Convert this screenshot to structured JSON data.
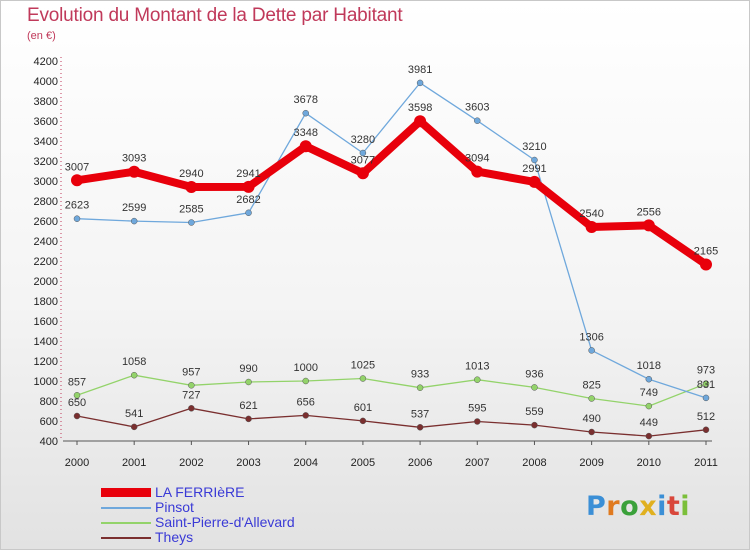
{
  "header": {
    "title": "Evolution du Montant de la Dette par Habitant",
    "unit": "(en €)"
  },
  "chart_data": {
    "type": "line",
    "title": "Evolution du Montant de la Dette par Habitant",
    "subtitle": "(en €)",
    "xlabel": "",
    "ylabel": "",
    "x": [
      "2000",
      "2001",
      "2002",
      "2003",
      "2004",
      "2005",
      "2006",
      "2007",
      "2008",
      "2009",
      "2010",
      "2011"
    ],
    "ylim": [
      400,
      4200
    ],
    "yticks": [
      400,
      600,
      800,
      1000,
      1200,
      1400,
      1600,
      1800,
      2000,
      2200,
      2400,
      2600,
      2800,
      3000,
      3200,
      3400,
      3600,
      3800,
      4000,
      4200
    ],
    "grid": false,
    "legend_position": "bottom-left",
    "series": [
      {
        "name": "LA FERRIèRE",
        "color": "#e8000b",
        "values": [
          3007,
          3093,
          2940,
          2941,
          3348,
          3077,
          3598,
          3094,
          2991,
          2540,
          2556,
          2165
        ]
      },
      {
        "name": "Pinsot",
        "color": "#6fa8dc",
        "values": [
          2623,
          2599,
          2585,
          2682,
          3678,
          3280,
          3981,
          3603,
          3210,
          1306,
          1018,
          831
        ]
      },
      {
        "name": "Saint-Pierre-d'Allevard",
        "color": "#93d36a",
        "values": [
          857,
          1058,
          957,
          990,
          1000,
          1025,
          933,
          1013,
          936,
          825,
          749,
          973
        ]
      },
      {
        "name": "Theys",
        "color": "#7a2f2f",
        "values": [
          650,
          541,
          727,
          621,
          656,
          601,
          537,
          595,
          559,
          490,
          449,
          512
        ]
      }
    ]
  },
  "brand": {
    "letters": [
      "P",
      "r",
      "o",
      "x",
      "i",
      "t",
      "i"
    ],
    "colors": [
      "#3b8fd6",
      "#e07a1f",
      "#3aa13a",
      "#e0b01f",
      "#3b8fd6",
      "#d9473b",
      "#7bbf3a"
    ]
  }
}
